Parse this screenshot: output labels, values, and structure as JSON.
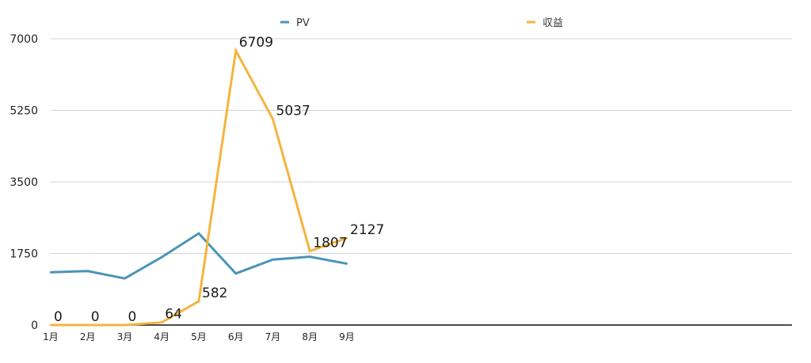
{
  "chart_data": {
    "type": "line",
    "categories": [
      "1月",
      "2月",
      "3月",
      "4月",
      "5月",
      "6月",
      "7月",
      "8月",
      "9月"
    ],
    "ylim": [
      0,
      7000
    ],
    "yticks": [
      0,
      1750,
      3500,
      5250,
      7000
    ],
    "grid": true,
    "legend_position": "top",
    "series": [
      {
        "name": "PV",
        "color": "#4a94b8",
        "values": [
          1290,
          1320,
          1140,
          1660,
          2240,
          1260,
          1600,
          1670,
          1500
        ],
        "show_labels": false
      },
      {
        "name": "収益",
        "color": "#f5b43e",
        "values": [
          0,
          0,
          0,
          64,
          582,
          6709,
          5037,
          1807,
          2127
        ],
        "show_labels": true
      }
    ]
  }
}
